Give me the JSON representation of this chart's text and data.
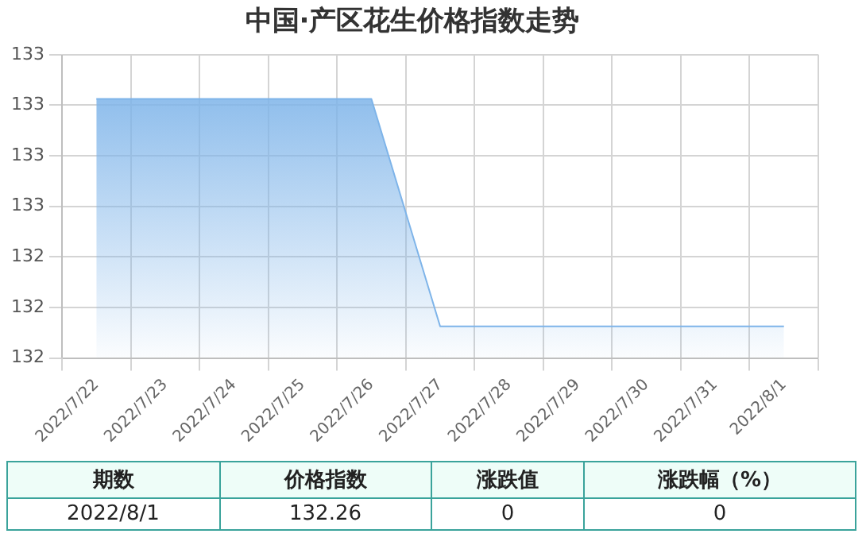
{
  "chart_data": {
    "type": "area",
    "title": "中国·产区花生价格指数走势",
    "categories": [
      "2022/7/22",
      "2022/7/23",
      "2022/7/24",
      "2022/7/25",
      "2022/7/26",
      "2022/7/27",
      "2022/7/28",
      "2022/7/29",
      "2022/7/30",
      "2022/7/31",
      "2022/8/1"
    ],
    "series": [
      {
        "color": "#7eb4e9",
        "values": [
          132.98,
          132.98,
          132.98,
          132.98,
          132.98,
          132.26,
          132.26,
          132.26,
          132.26,
          132.26,
          132.26
        ]
      }
    ],
    "ylim": [
      132.16,
      133.12
    ],
    "yticks": [
      {
        "value": 132.16,
        "label": "132"
      },
      {
        "value": 132.32,
        "label": "132"
      },
      {
        "value": 132.48,
        "label": "132"
      },
      {
        "value": 132.64,
        "label": "133"
      },
      {
        "value": 132.8,
        "label": "133"
      },
      {
        "value": 132.96,
        "label": "133"
      },
      {
        "value": 133.12,
        "label": "133"
      }
    ],
    "grid": true,
    "legend": false,
    "annotations": [
      "期数",
      "价格指数",
      "涨跌值",
      "涨跌幅（%）",
      "2022/8/1",
      "132.26",
      "0",
      "0"
    ]
  }
}
